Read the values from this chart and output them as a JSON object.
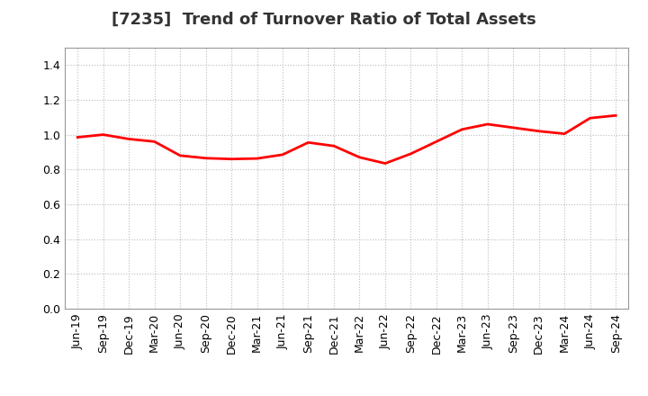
{
  "title": "[7235]  Trend of Turnover Ratio of Total Assets",
  "x_labels": [
    "Jun-19",
    "Sep-19",
    "Dec-19",
    "Mar-20",
    "Jun-20",
    "Sep-20",
    "Dec-20",
    "Mar-21",
    "Jun-21",
    "Sep-21",
    "Dec-21",
    "Mar-22",
    "Jun-22",
    "Sep-22",
    "Dec-22",
    "Mar-23",
    "Jun-23",
    "Sep-23",
    "Dec-23",
    "Mar-24",
    "Jun-24",
    "Sep-24"
  ],
  "y_values": [
    0.985,
    1.0,
    0.975,
    0.96,
    0.88,
    0.865,
    0.86,
    0.863,
    0.885,
    0.955,
    0.935,
    0.87,
    0.835,
    0.89,
    0.96,
    1.03,
    1.06,
    1.04,
    1.02,
    1.005,
    1.095,
    1.11
  ],
  "ylim": [
    0.0,
    1.5
  ],
  "yticks": [
    0.0,
    0.2,
    0.4,
    0.6,
    0.8,
    1.0,
    1.2,
    1.4
  ],
  "line_color": "#ff0000",
  "line_width": 2.0,
  "bg_color": "#ffffff",
  "plot_bg_color": "#ffffff",
  "grid_color": "#bbbbbb",
  "title_fontsize": 13,
  "tick_fontsize": 9,
  "title_color": "#333333"
}
